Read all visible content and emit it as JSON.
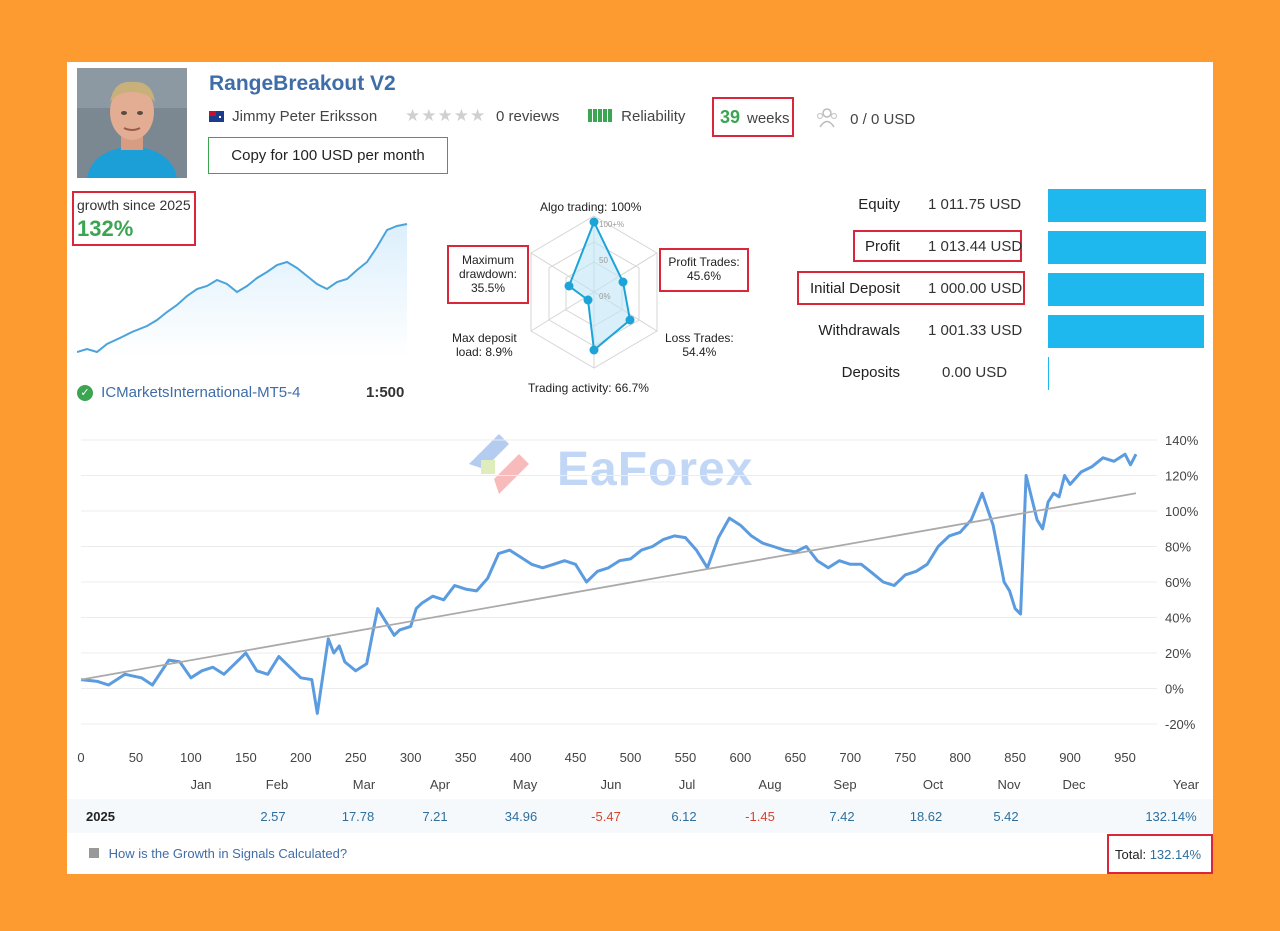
{
  "header": {
    "title": "RangeBreakout V2",
    "author": "Jimmy Peter Eriksson",
    "reviews": "0 reviews",
    "reliability_label": "Reliability",
    "weeks_number": "39",
    "weeks_label": "weeks",
    "subscribers": "0 / 0 USD",
    "copy_button": "Copy for 100 USD per month",
    "rating_stars": 0
  },
  "growth": {
    "since_label": "growth since 2025",
    "value": "132%"
  },
  "broker": {
    "name": "ICMarketsInternational-MT5-4",
    "leverage": "1:500"
  },
  "radar": {
    "algo": "Algo trading: 100%",
    "profit_l1": "Profit Trades:",
    "profit_l2": "45.6%",
    "loss_l1": "Loss Trades:",
    "loss_l2": "54.4%",
    "activity": "Trading activity: 66.7%",
    "deposit_l1": "Max deposit",
    "deposit_l2": "load: 8.9%",
    "drawdown_l1": "Maximum",
    "drawdown_l2": "drawdown:",
    "drawdown_l3": "35.5%",
    "ring_100": "100+%",
    "ring_50": "50",
    "ring_0": "0%"
  },
  "stats": [
    {
      "label": "Equity",
      "value": "1 011.75 USD",
      "fill": 1.0
    },
    {
      "label": "Profit",
      "value": "1 013.44 USD",
      "fill": 1.0
    },
    {
      "label": "Initial Deposit",
      "value": "1 000.00 USD",
      "fill": 0.99
    },
    {
      "label": "Withdrawals",
      "value": "1 001.33 USD",
      "fill": 0.99
    },
    {
      "label": "Deposits",
      "value": "0.00 USD",
      "fill": 0.0
    }
  ],
  "watermark": "EaForex",
  "chart_data": {
    "type": "line",
    "xlabel": "",
    "ylabel": "",
    "x_ticks": [
      0,
      50,
      100,
      150,
      200,
      250,
      300,
      350,
      400,
      450,
      500,
      550,
      600,
      650,
      700,
      750,
      800,
      850,
      900,
      950
    ],
    "y_ticks": [
      "140%",
      "120%",
      "100%",
      "80%",
      "60%",
      "40%",
      "20%",
      "0%",
      "-20%"
    ],
    "xlim": [
      0,
      970
    ],
    "ylim": [
      -20,
      140
    ],
    "month_labels": [
      "Jan",
      "Feb",
      "Mar",
      "Apr",
      "May",
      "Jun",
      "Jul",
      "Aug",
      "Sep",
      "Oct",
      "Nov",
      "Dec",
      "Year"
    ],
    "series": [
      {
        "color": "#5B9BE0",
        "x": [
          0,
          15,
          25,
          40,
          55,
          65,
          80,
          90,
          100,
          110,
          120,
          130,
          140,
          150,
          160,
          170,
          180,
          190,
          200,
          210,
          215,
          225,
          230,
          235,
          240,
          250,
          260,
          265,
          270,
          280,
          285,
          290,
          300,
          305,
          310,
          320,
          330,
          340,
          350,
          360,
          370,
          380,
          390,
          400,
          410,
          420,
          430,
          440,
          450,
          460,
          470,
          480,
          490,
          500,
          510,
          520,
          530,
          540,
          550,
          560,
          570,
          580,
          590,
          600,
          610,
          620,
          630,
          640,
          650,
          660,
          670,
          680,
          690,
          700,
          710,
          720,
          730,
          740,
          750,
          760,
          770,
          780,
          790,
          800,
          810,
          820,
          830,
          840,
          845,
          850,
          855,
          860,
          870,
          875,
          880,
          885,
          890,
          895,
          900,
          910,
          920,
          930,
          940,
          950,
          955,
          960
        ],
        "values": [
          5,
          4,
          2,
          8,
          6,
          2,
          16,
          15,
          6,
          10,
          12,
          8,
          14,
          20,
          10,
          8,
          18,
          12,
          6,
          5,
          -14,
          28,
          20,
          24,
          15,
          10,
          14,
          30,
          45,
          35,
          30,
          33,
          35,
          45,
          48,
          52,
          50,
          58,
          56,
          55,
          62,
          76,
          78,
          74,
          70,
          68,
          70,
          72,
          70,
          60,
          66,
          68,
          72,
          73,
          78,
          80,
          84,
          86,
          85,
          78,
          68,
          85,
          96,
          92,
          86,
          82,
          80,
          78,
          77,
          80,
          72,
          68,
          72,
          70,
          70,
          65,
          60,
          58,
          64,
          66,
          70,
          80,
          86,
          88,
          95,
          110,
          92,
          60,
          55,
          45,
          42,
          120,
          95,
          90,
          105,
          110,
          108,
          120,
          115,
          122,
          125,
          130,
          128,
          132,
          126,
          132
        ]
      },
      {
        "color": "#AAAAAA",
        "x": [
          0,
          960
        ],
        "values": [
          5,
          110
        ]
      }
    ]
  },
  "monthly": {
    "year": "2025",
    "values": [
      "2.57",
      "17.78",
      "7.21",
      "34.96",
      "-5.47",
      "6.12",
      "-1.45",
      "7.42",
      "18.62",
      "5.42",
      "",
      "132.14%"
    ]
  },
  "footer": {
    "help_link": "How is the Growth in Signals Calculated?",
    "total_label": "Total:",
    "total_value": "132.14%"
  }
}
